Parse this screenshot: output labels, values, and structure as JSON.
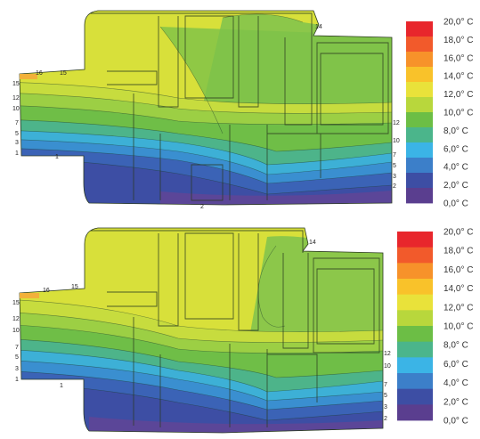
{
  "legend": {
    "labels": [
      "20,0° C",
      "18,0° C",
      "16,0° C",
      "14,0° C",
      "12,0° C",
      "10,0° C",
      "8,0° C",
      "6,0° C",
      "4,0° C",
      "2,0° C",
      "0,0° C"
    ],
    "colors": [
      "#e8262c",
      "#f25a2b",
      "#f7922a",
      "#f9c22a",
      "#e9e23a",
      "#b8d73c",
      "#6cbe45",
      "#4bb58b",
      "#3bb4e6",
      "#3c7fc9",
      "#3d4ea4",
      "#5a3e8f"
    ]
  },
  "top": {
    "iso_labels_left": [
      "16",
      "15",
      "15",
      "12",
      "10",
      "7",
      "5",
      "3",
      "1",
      "1"
    ],
    "iso_labels_right": [
      "14",
      "12",
      "10",
      "7",
      "5",
      "3",
      "2"
    ],
    "iso_label_bottom": "2"
  },
  "bottom": {
    "iso_labels_left": [
      "16",
      "15",
      "15",
      "12",
      "10",
      "7",
      "5",
      "3",
      "1",
      "1"
    ],
    "iso_labels_right": [
      "14",
      "12",
      "10",
      "7",
      "5",
      "3",
      "2"
    ]
  }
}
